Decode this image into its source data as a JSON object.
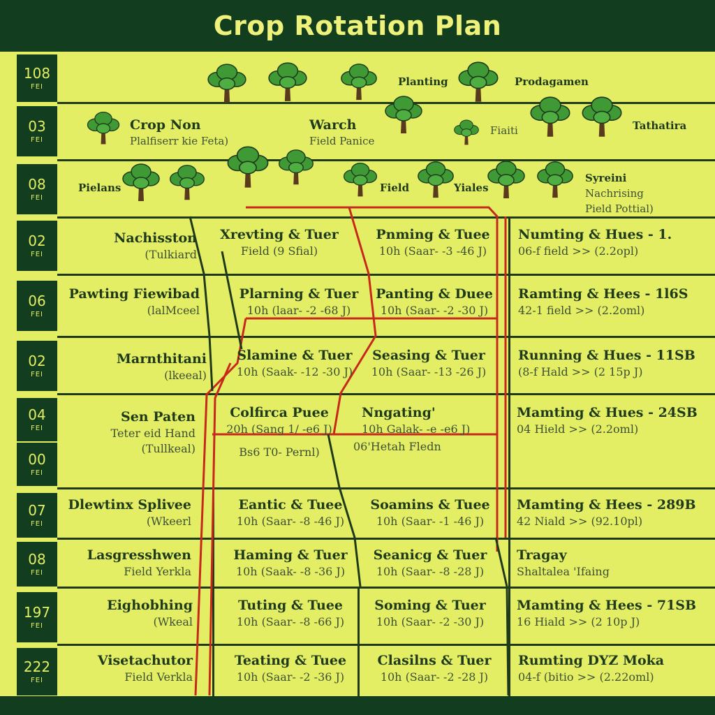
{
  "title": "Crop Rotation Plan",
  "rows": [
    {
      "num": "108",
      "unit": "FEI"
    },
    {
      "num": "03",
      "unit": "FEI"
    },
    {
      "num": "08",
      "unit": "FEI"
    },
    {
      "num": "02",
      "unit": "FEI"
    },
    {
      "num": "06",
      "unit": "FEI"
    },
    {
      "num": "02",
      "unit": "FEI"
    },
    {
      "num": "04",
      "unit": "FEI"
    },
    {
      "num": "00",
      "unit": "FEI"
    },
    {
      "num": "07",
      "unit": "FEI"
    },
    {
      "num": "08",
      "unit": "FEI"
    },
    {
      "num": "197",
      "unit": "FEI"
    },
    {
      "num": "222",
      "unit": "FEI"
    }
  ],
  "top_labels": {
    "planting": "Planting",
    "prodagamen": "Prodagamen",
    "crop_non": "Crop Non",
    "crop_non_sub": "Plalfiserr kie Feta)",
    "warch": "Warch",
    "warch_sub": "Field Panice",
    "fiaiti": "Fiaiti",
    "tathatira": "Tathatira",
    "pielans": "Pielans",
    "field": "Field",
    "yiales": "Yiales",
    "syreini": "Syreini",
    "syreini_sub1": "Nachrising",
    "syreini_sub2": "Pield Pottial)"
  },
  "grid": [
    [
      {
        "t": "Nachisston",
        "s": "(Tulkiard"
      },
      {
        "t": "Xrevting & Tuer",
        "s": "Field (9 Sfial)"
      },
      {
        "t": "Pnming & Tuee",
        "s": "10h (Saar- -3 -46 J)"
      },
      {
        "t": "Numting & Hues - 1.",
        "s": "06-f field >> (2.2opl)"
      }
    ],
    [
      {
        "t": "Pawting Fiewibad",
        "s": "(lalMceel"
      },
      {
        "t": "Plarning & Tuer",
        "s": "10h (laar- -2 -68 J)"
      },
      {
        "t": "Panting & Duee",
        "s": "10h (Saar- -2 -30 J)"
      },
      {
        "t": "Ramting & Hees - 1l6S",
        "s": "42-1 field >> (2.2oml)"
      }
    ],
    [
      {
        "t": "Marnthitani",
        "s": "(lkeeal)"
      },
      {
        "t": "Slamine & Tuer",
        "s": "10h (Saak- -12 -30 J)"
      },
      {
        "t": "Seasing & Tuer",
        "s": "10h (Saar- -13 -26 J)"
      },
      {
        "t": "Running & Hues - 11SB",
        "s": "(8-f Hald >> (2 15p J)"
      }
    ],
    [
      {
        "t": "Sen Paten",
        "s": "Teter eid Hand",
        "s2": "(Tullkeal)"
      },
      {
        "t": "Colfirca Puee",
        "s": "20h (Sang 1/ -e6 J)",
        "s2": "Bs6 T0- Pernl)"
      },
      {
        "t": "Nngating'",
        "s": "10h Galak- -e -e6 J)",
        "s2": "06'Hetah Fledn"
      },
      {
        "t": "Mamting & Hues - 24SB",
        "s": "04 Hield >> (2.2oml)"
      }
    ],
    [
      {
        "t": "Dlewtinx Splivee",
        "s": "(Wkeerl"
      },
      {
        "t": "Eantic & Tuee",
        "s": "10h (Saar- -8 -46 J)"
      },
      {
        "t": "Soamins & Tuee",
        "s": "10h (Saar- -1 -46 J)"
      },
      {
        "t": "Mamting & Hees - 289B",
        "s": "42 Niald >> (92.10pl)"
      }
    ],
    [
      {
        "t": "Lasgresshwen",
        "s": "Field Yerkla"
      },
      {
        "t": "Haming & Tuer",
        "s": "10h (Saak- -8 -36 J)"
      },
      {
        "t": "Seanicg & Tuer",
        "s": "10h (Saar- -8 -28 J)"
      },
      {
        "t": "Tragay",
        "s": "Shaltalea 'Ifaing"
      }
    ],
    [
      {
        "t": "Eighobhing",
        "s": "(Wkeal"
      },
      {
        "t": "Tuting & Tuee",
        "s": "10h (Saar- -8 -66 J)"
      },
      {
        "t": "Soming & Tuer",
        "s": "10h (Saar- -2 -30 J)"
      },
      {
        "t": "Mamting & Hees - 71SB",
        "s": "16 Hiald >> (2 10p J)"
      }
    ],
    [
      {
        "t": "Visetachutor",
        "s": "Field Verkla"
      },
      {
        "t": "Teating & Tuee",
        "s": "10h (Saar- -2 -36 J)"
      },
      {
        "t": "Clasilns & Tuer",
        "s": "10h (Saar- -2 -28 J)"
      },
      {
        "t": "Rumting DYZ Moka",
        "s": "04-f (bitio >> (2.22oml)"
      }
    ]
  ],
  "colors": {
    "dark_green": "#123e1f",
    "background": "#e4ee64",
    "route_red": "#c6281c",
    "route_dark": "#1e3a1a",
    "leaf": "#3f9a36"
  }
}
